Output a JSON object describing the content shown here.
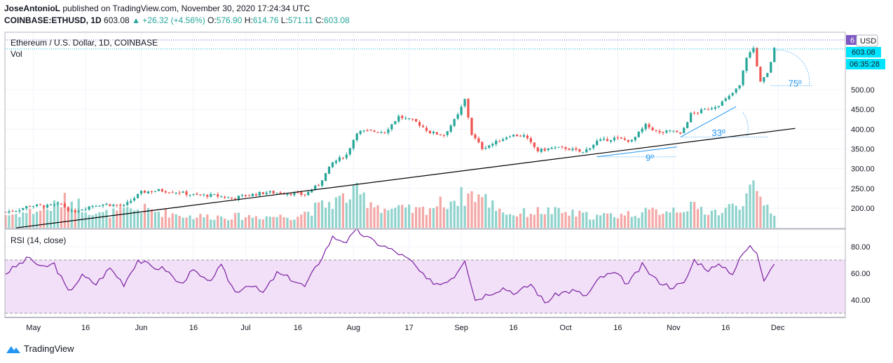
{
  "header": {
    "publisher": "JoseAntonioL",
    "published_text": "published on TradingView.com, November 30, 2020 17:24:34 UTC",
    "symbol": "COINBASE:ETHUSD, 1D",
    "last": "603.08",
    "change": "▲ +26.32 (+4.56%)",
    "o_label": "O:",
    "o": "576.90",
    "h_label": "H:",
    "h": "614.76",
    "l_label": "L:",
    "l": "571.11",
    "c_label": "C:",
    "c": "603.08"
  },
  "chart_data": [
    {
      "type": "candlestick",
      "title": "Ethereum / U.S. Dollar, 1D, COINBASE",
      "volume_label": "Vol",
      "currency": "USD",
      "price_tag": "603.08",
      "countdown": "06:35:28",
      "price_tag_top": "6",
      "ylim": [
        150,
        700
      ],
      "y_ticks": [
        200,
        250,
        300,
        350,
        400,
        450,
        500
      ],
      "y_tick_labels": [
        "200.00",
        "250.00",
        "300.00",
        "350.00",
        "400.00",
        "450.00",
        "500.00"
      ],
      "x_tick_labels": [
        {
          "label": "May",
          "date": "2020-05-01"
        },
        {
          "label": "16",
          "date": "2020-05-16"
        },
        {
          "label": "Jun",
          "date": "2020-06-01"
        },
        {
          "label": "16",
          "date": "2020-06-16"
        },
        {
          "label": "Jul",
          "date": "2020-07-01"
        },
        {
          "label": "16",
          "date": "2020-07-16"
        },
        {
          "label": "Aug",
          "date": "2020-08-01"
        },
        {
          "label": "17",
          "date": "2020-08-17"
        },
        {
          "label": "Sep",
          "date": "2020-09-01"
        },
        {
          "label": "16",
          "date": "2020-09-16"
        },
        {
          "label": "Oct",
          "date": "2020-10-01"
        },
        {
          "label": "16",
          "date": "2020-10-16"
        },
        {
          "label": "Nov",
          "date": "2020-11-01"
        },
        {
          "label": "16",
          "date": "2020-11-16"
        },
        {
          "label": "Dec",
          "date": "2020-12-01"
        }
      ],
      "close_series": [
        {
          "date": "2020-04-23",
          "close": 190
        },
        {
          "date": "2020-04-27",
          "close": 197
        },
        {
          "date": "2020-04-30",
          "close": 207
        },
        {
          "date": "2020-05-05",
          "close": 205
        },
        {
          "date": "2020-05-09",
          "close": 210
        },
        {
          "date": "2020-05-12",
          "close": 190
        },
        {
          "date": "2020-05-18",
          "close": 207
        },
        {
          "date": "2020-05-22",
          "close": 210
        },
        {
          "date": "2020-05-27",
          "close": 205
        },
        {
          "date": "2020-06-01",
          "close": 240
        },
        {
          "date": "2020-06-06",
          "close": 245
        },
        {
          "date": "2020-06-12",
          "close": 240
        },
        {
          "date": "2020-06-16",
          "close": 233
        },
        {
          "date": "2020-06-22",
          "close": 232
        },
        {
          "date": "2020-06-27",
          "close": 225
        },
        {
          "date": "2020-07-01",
          "close": 232
        },
        {
          "date": "2020-07-07",
          "close": 240
        },
        {
          "date": "2020-07-13",
          "close": 238
        },
        {
          "date": "2020-07-18",
          "close": 234
        },
        {
          "date": "2020-07-22",
          "close": 260
        },
        {
          "date": "2020-07-26",
          "close": 315
        },
        {
          "date": "2020-07-30",
          "close": 335
        },
        {
          "date": "2020-08-02",
          "close": 393
        },
        {
          "date": "2020-08-06",
          "close": 395
        },
        {
          "date": "2020-08-10",
          "close": 393
        },
        {
          "date": "2020-08-14",
          "close": 432
        },
        {
          "date": "2020-08-19",
          "close": 418
        },
        {
          "date": "2020-08-23",
          "close": 392
        },
        {
          "date": "2020-08-27",
          "close": 385
        },
        {
          "date": "2020-08-31",
          "close": 435
        },
        {
          "date": "2020-09-02",
          "close": 475
        },
        {
          "date": "2020-09-04",
          "close": 387
        },
        {
          "date": "2020-09-07",
          "close": 352
        },
        {
          "date": "2020-09-11",
          "close": 367
        },
        {
          "date": "2020-09-15",
          "close": 385
        },
        {
          "date": "2020-09-19",
          "close": 383
        },
        {
          "date": "2020-09-23",
          "close": 345
        },
        {
          "date": "2020-09-27",
          "close": 352
        },
        {
          "date": "2020-10-01",
          "close": 352
        },
        {
          "date": "2020-10-06",
          "close": 341
        },
        {
          "date": "2020-10-10",
          "close": 369
        },
        {
          "date": "2020-10-15",
          "close": 377
        },
        {
          "date": "2020-10-20",
          "close": 370
        },
        {
          "date": "2020-10-24",
          "close": 410
        },
        {
          "date": "2020-10-28",
          "close": 390
        },
        {
          "date": "2020-11-01",
          "close": 396
        },
        {
          "date": "2020-11-03",
          "close": 386
        },
        {
          "date": "2020-11-06",
          "close": 438
        },
        {
          "date": "2020-11-10",
          "close": 449
        },
        {
          "date": "2020-11-14",
          "close": 462
        },
        {
          "date": "2020-11-17",
          "close": 482
        },
        {
          "date": "2020-11-20",
          "close": 510
        },
        {
          "date": "2020-11-22",
          "close": 583
        },
        {
          "date": "2020-11-24",
          "close": 605
        },
        {
          "date": "2020-11-26",
          "close": 518
        },
        {
          "date": "2020-11-28",
          "close": 540
        },
        {
          "date": "2020-11-30",
          "close": 603
        }
      ],
      "volume_series": [
        {
          "date": "2020-04-25",
          "value": 0.35
        },
        {
          "date": "2020-05-05",
          "value": 0.5
        },
        {
          "date": "2020-05-11",
          "value": 0.75
        },
        {
          "date": "2020-05-20",
          "value": 0.35
        },
        {
          "date": "2020-06-01",
          "value": 0.5
        },
        {
          "date": "2020-06-15",
          "value": 0.3
        },
        {
          "date": "2020-07-01",
          "value": 0.3
        },
        {
          "date": "2020-07-15",
          "value": 0.3
        },
        {
          "date": "2020-07-25",
          "value": 0.65
        },
        {
          "date": "2020-08-02",
          "value": 0.9
        },
        {
          "date": "2020-08-10",
          "value": 0.5
        },
        {
          "date": "2020-08-20",
          "value": 0.45
        },
        {
          "date": "2020-09-02",
          "value": 0.85
        },
        {
          "date": "2020-09-05",
          "value": 0.9
        },
        {
          "date": "2020-09-15",
          "value": 0.35
        },
        {
          "date": "2020-09-25",
          "value": 0.45
        },
        {
          "date": "2020-10-10",
          "value": 0.3
        },
        {
          "date": "2020-10-24",
          "value": 0.4
        },
        {
          "date": "2020-11-05",
          "value": 0.55
        },
        {
          "date": "2020-11-15",
          "value": 0.4
        },
        {
          "date": "2020-11-24",
          "value": 0.95
        },
        {
          "date": "2020-11-30",
          "value": 0.4
        }
      ],
      "trendline": [
        {
          "date": "2020-04-26",
          "price": 150
        },
        {
          "date": "2020-12-06",
          "price": 402
        }
      ],
      "annotations": [
        {
          "text": "9º",
          "date": "2020-10-24",
          "price": 320
        },
        {
          "text": "33º",
          "date": "2020-11-12",
          "price": 383
        },
        {
          "text": "75º",
          "date": "2020-12-04",
          "price": 508
        }
      ],
      "colors": {
        "up": "#26a69a",
        "down": "#ef5350",
        "trend": "#000000",
        "annotation": "#2196f3",
        "tag_top": "#7e57c2",
        "tag": "#00e5ff"
      }
    },
    {
      "type": "line",
      "title": "RSI (14, close)",
      "ylim": [
        28,
        93
      ],
      "y_ticks": [
        40,
        60,
        80
      ],
      "y_tick_labels": [
        "40.00",
        "60.00",
        "80.00"
      ],
      "band": [
        30,
        70
      ],
      "series": [
        {
          "date": "2020-04-23",
          "value": 60
        },
        {
          "date": "2020-04-27",
          "value": 67
        },
        {
          "date": "2020-04-30",
          "value": 72
        },
        {
          "date": "2020-05-03",
          "value": 64
        },
        {
          "date": "2020-05-07",
          "value": 67
        },
        {
          "date": "2020-05-11",
          "value": 46
        },
        {
          "date": "2020-05-15",
          "value": 58
        },
        {
          "date": "2020-05-19",
          "value": 52
        },
        {
          "date": "2020-05-23",
          "value": 64
        },
        {
          "date": "2020-05-27",
          "value": 52
        },
        {
          "date": "2020-05-31",
          "value": 70
        },
        {
          "date": "2020-06-04",
          "value": 65
        },
        {
          "date": "2020-06-08",
          "value": 63
        },
        {
          "date": "2020-06-12",
          "value": 52
        },
        {
          "date": "2020-06-16",
          "value": 62
        },
        {
          "date": "2020-06-20",
          "value": 53
        },
        {
          "date": "2020-06-24",
          "value": 65
        },
        {
          "date": "2020-06-28",
          "value": 46
        },
        {
          "date": "2020-07-02",
          "value": 52
        },
        {
          "date": "2020-07-06",
          "value": 45
        },
        {
          "date": "2020-07-10",
          "value": 60
        },
        {
          "date": "2020-07-14",
          "value": 56
        },
        {
          "date": "2020-07-18",
          "value": 50
        },
        {
          "date": "2020-07-22",
          "value": 68
        },
        {
          "date": "2020-07-26",
          "value": 87
        },
        {
          "date": "2020-07-30",
          "value": 84
        },
        {
          "date": "2020-08-02",
          "value": 92
        },
        {
          "date": "2020-08-06",
          "value": 85
        },
        {
          "date": "2020-08-10",
          "value": 80
        },
        {
          "date": "2020-08-14",
          "value": 75
        },
        {
          "date": "2020-08-18",
          "value": 68
        },
        {
          "date": "2020-08-22",
          "value": 55
        },
        {
          "date": "2020-08-26",
          "value": 52
        },
        {
          "date": "2020-08-30",
          "value": 58
        },
        {
          "date": "2020-09-02",
          "value": 71
        },
        {
          "date": "2020-09-05",
          "value": 40
        },
        {
          "date": "2020-09-09",
          "value": 45
        },
        {
          "date": "2020-09-13",
          "value": 49
        },
        {
          "date": "2020-09-17",
          "value": 45
        },
        {
          "date": "2020-09-21",
          "value": 52
        },
        {
          "date": "2020-09-25",
          "value": 38
        },
        {
          "date": "2020-09-29",
          "value": 45
        },
        {
          "date": "2020-10-03",
          "value": 47
        },
        {
          "date": "2020-10-07",
          "value": 43
        },
        {
          "date": "2020-10-11",
          "value": 57
        },
        {
          "date": "2020-10-15",
          "value": 60
        },
        {
          "date": "2020-10-19",
          "value": 52
        },
        {
          "date": "2020-10-23",
          "value": 66
        },
        {
          "date": "2020-10-27",
          "value": 55
        },
        {
          "date": "2020-10-31",
          "value": 50
        },
        {
          "date": "2020-11-04",
          "value": 52
        },
        {
          "date": "2020-11-07",
          "value": 70
        },
        {
          "date": "2020-11-11",
          "value": 63
        },
        {
          "date": "2020-11-15",
          "value": 66
        },
        {
          "date": "2020-11-18",
          "value": 60
        },
        {
          "date": "2020-11-21",
          "value": 75
        },
        {
          "date": "2020-11-23",
          "value": 80
        },
        {
          "date": "2020-11-25",
          "value": 76
        },
        {
          "date": "2020-11-27",
          "value": 56
        },
        {
          "date": "2020-11-30",
          "value": 68
        }
      ],
      "colors": {
        "line": "#7b1fa2",
        "band": "#f1e0f7",
        "band_line": "#9b9b9b"
      }
    }
  ],
  "footer": {
    "brand": "TradingView"
  }
}
